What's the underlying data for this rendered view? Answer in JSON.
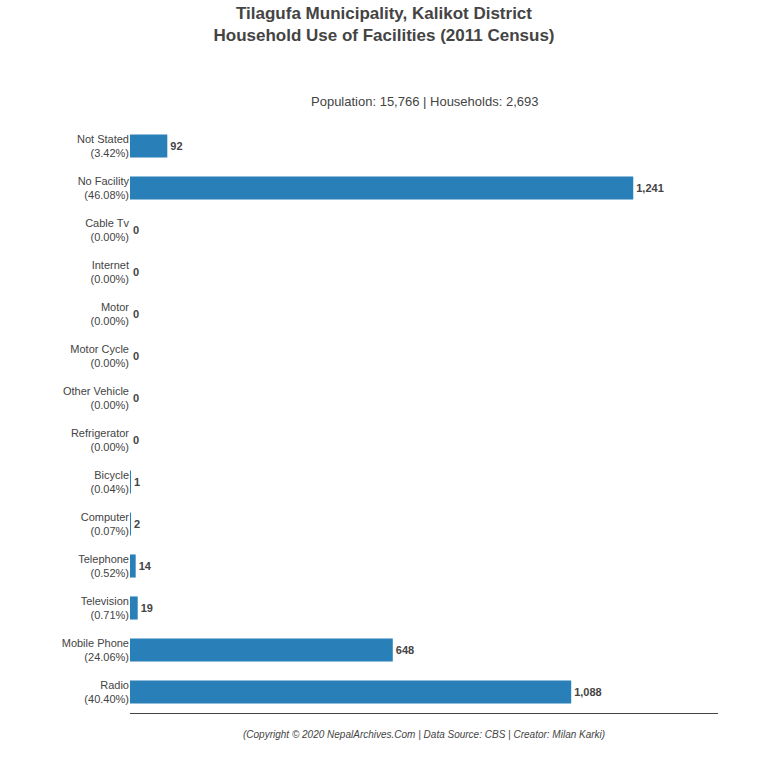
{
  "chart_data": {
    "type": "bar",
    "orientation": "horizontal",
    "title": "Tilagufa Municipality, Kalikot District\nHousehold Use of Facilities (2011 Census)",
    "subtitle": "Population: 15,766 | Households: 2,693",
    "annotations": [
      "(Copyright © 2020 NepalArchives.Com | Data Source: CBS | Creator: Milan Karki)"
    ],
    "categories": [
      "Radio\n(40.40%)",
      "Mobile Phone\n(24.06%)",
      "Television\n(0.71%)",
      "Telephone\n(0.52%)",
      "Computer\n(0.07%)",
      "Bicycle\n(0.04%)",
      "Refrigerator\n(0.00%)",
      "Other Vehicle\n(0.00%)",
      "Motor Cycle\n(0.00%)",
      "Motor\n(0.00%)",
      "Internet\n(0.00%)",
      "Cable Tv\n(0.00%)",
      "No Facility\n(46.08%)",
      "Not Stated\n(3.42%)"
    ],
    "values": [
      1088,
      648,
      19,
      14,
      2,
      1,
      0,
      0,
      0,
      0,
      0,
      0,
      1241,
      92
    ],
    "value_labels": [
      "1,088",
      "648",
      "19",
      "14",
      "2",
      "1",
      "0",
      "0",
      "0",
      "0",
      "0",
      "0",
      "1,241",
      "92"
    ],
    "data_labels": true,
    "color": "#2980b9",
    "xlim": [
      0,
      1450
    ],
    "tick_labels": "y",
    "grid": false
  }
}
